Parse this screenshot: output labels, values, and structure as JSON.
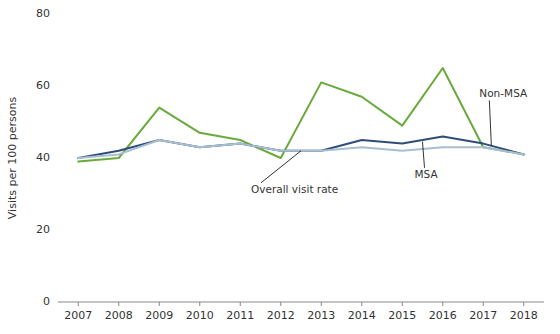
{
  "chart_data": {
    "type": "line",
    "x": [
      2007,
      2008,
      2009,
      2010,
      2011,
      2012,
      2013,
      2014,
      2015,
      2016,
      2017,
      2018
    ],
    "series": [
      {
        "color": "#6aaa3a",
        "values": [
          39,
          40,
          54,
          47,
          45,
          40,
          61,
          57,
          49,
          65,
          43,
          41
        ]
      },
      {
        "color": "#2e4d7b",
        "values": [
          40,
          42,
          45,
          43,
          44,
          42,
          42,
          45,
          44,
          46,
          44,
          41
        ]
      },
      {
        "color": "#a8bfd0",
        "values": [
          40,
          41,
          45,
          43,
          44,
          42,
          42,
          43,
          42,
          43,
          43,
          41
        ]
      }
    ],
    "y_label": "Visits per 100 persons",
    "ylim": [
      0,
      80
    ],
    "yticks": [
      0,
      20,
      40,
      60,
      80
    ],
    "xlim": [
      2006.5,
      2018.5
    ],
    "xticks": [
      2007,
      2008,
      2009,
      2010,
      2011,
      2012,
      2013,
      2014,
      2015,
      2016,
      2017,
      2018
    ],
    "grid": false,
    "annotations": [
      {
        "text": "Overall visit rate",
        "x": 2012.5,
        "y": 42
      },
      {
        "text": "MSA",
        "x": 2015.5,
        "y": 44.5
      },
      {
        "text": "Non-MSA",
        "x": 2017.2,
        "y": 43.5
      }
    ]
  }
}
